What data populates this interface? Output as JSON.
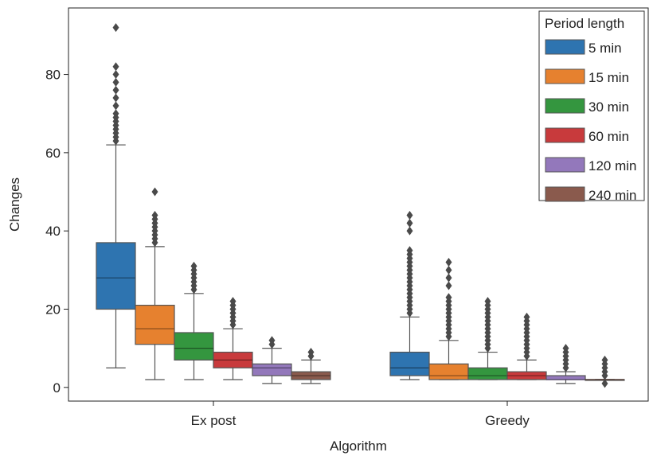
{
  "chart_data": {
    "type": "box",
    "xlabel": "Algorithm",
    "ylabel": "Changes",
    "ylim": [
      -3.5,
      97
    ],
    "yticks": [
      0,
      20,
      40,
      60,
      80
    ],
    "grid": false,
    "categories": [
      "Ex post",
      "Greedy"
    ],
    "legend": {
      "title": "Period length",
      "placement": "top-right",
      "entries": [
        "5 min",
        "15 min",
        "30 min",
        "60 min",
        "120 min",
        "240 min"
      ]
    },
    "colors": [
      "#2e74b0",
      "#e6812f",
      "#34963f",
      "#c83a3c",
      "#9378bb",
      "#8a5a4d"
    ],
    "series": [
      {
        "name": "5 min",
        "boxes": [
          {
            "category": "Ex post",
            "whisker_low": 5,
            "q1": 20,
            "median": 28,
            "q3": 37,
            "whisker_high": 62,
            "outliers": [
              63,
              64,
              65,
              66,
              67,
              68,
              69,
              70,
              72,
              74,
              76,
              78,
              80,
              82,
              92
            ]
          },
          {
            "category": "Greedy",
            "whisker_low": 2,
            "q1": 3,
            "median": 5,
            "q3": 9,
            "whisker_high": 18,
            "outliers": [
              19,
              20,
              21,
              22,
              23,
              24,
              25,
              26,
              27,
              28,
              29,
              30,
              31,
              32,
              33,
              34,
              35,
              40,
              42,
              44
            ]
          }
        ]
      },
      {
        "name": "15 min",
        "boxes": [
          {
            "category": "Ex post",
            "whisker_low": 2,
            "q1": 11,
            "median": 15,
            "q3": 21,
            "whisker_high": 36,
            "outliers": [
              37,
              38,
              39,
              40,
              41,
              42,
              43,
              44,
              50
            ]
          },
          {
            "category": "Greedy",
            "whisker_low": 2,
            "q1": 2,
            "median": 3,
            "q3": 6,
            "whisker_high": 12,
            "outliers": [
              13,
              14,
              15,
              16,
              17,
              18,
              19,
              20,
              21,
              22,
              23,
              26,
              28,
              30,
              32
            ]
          }
        ]
      },
      {
        "name": "30 min",
        "boxes": [
          {
            "category": "Ex post",
            "whisker_low": 2,
            "q1": 7,
            "median": 10,
            "q3": 14,
            "whisker_high": 24,
            "outliers": [
              25,
              26,
              27,
              28,
              29,
              30,
              31
            ]
          },
          {
            "category": "Greedy",
            "whisker_low": 2,
            "q1": 2,
            "median": 3,
            "q3": 5,
            "whisker_high": 9,
            "outliers": [
              10,
              11,
              12,
              13,
              14,
              15,
              16,
              17,
              18,
              19,
              20,
              21,
              22
            ]
          }
        ]
      },
      {
        "name": "60 min",
        "boxes": [
          {
            "category": "Ex post",
            "whisker_low": 2,
            "q1": 5,
            "median": 7,
            "q3": 9,
            "whisker_high": 15,
            "outliers": [
              16,
              17,
              18,
              19,
              20,
              21,
              22
            ]
          },
          {
            "category": "Greedy",
            "whisker_low": 2,
            "q1": 2,
            "median": 3,
            "q3": 4,
            "whisker_high": 7,
            "outliers": [
              8,
              9,
              10,
              11,
              12,
              13,
              14,
              15,
              16,
              17,
              18
            ]
          }
        ]
      },
      {
        "name": "120 min",
        "boxes": [
          {
            "category": "Ex post",
            "whisker_low": 1,
            "q1": 3,
            "median": 5,
            "q3": 6,
            "whisker_high": 10,
            "outliers": [
              11,
              12
            ]
          },
          {
            "category": "Greedy",
            "whisker_low": 1,
            "q1": 2,
            "median": 2,
            "q3": 3,
            "whisker_high": 4,
            "outliers": [
              5,
              6,
              7,
              8,
              9,
              10
            ]
          }
        ]
      },
      {
        "name": "240 min",
        "boxes": [
          {
            "category": "Ex post",
            "whisker_low": 1,
            "q1": 2,
            "median": 3,
            "q3": 4,
            "whisker_high": 7,
            "outliers": [
              8,
              9
            ]
          },
          {
            "category": "Greedy",
            "whisker_low": 2,
            "q1": 2,
            "median": 2,
            "q3": 2,
            "whisker_high": 2,
            "outliers": [
              1,
              3,
              4,
              5,
              6,
              7
            ]
          }
        ]
      }
    ]
  }
}
